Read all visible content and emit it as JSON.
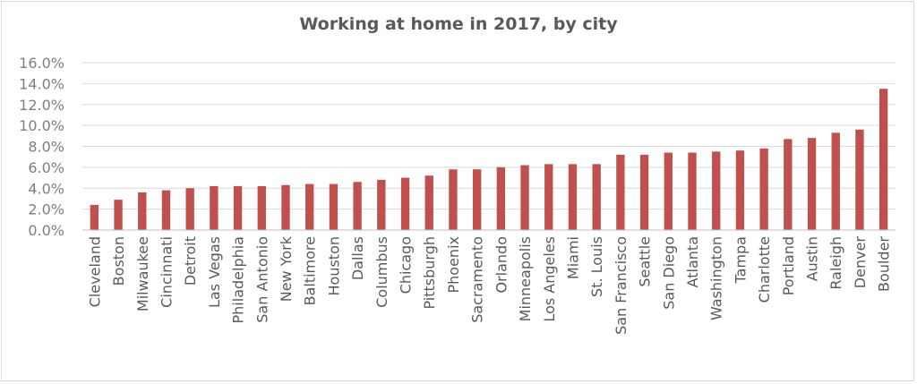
{
  "chart_data": {
    "type": "bar",
    "title": "Working at home in 2017, by city",
    "xlabel": "",
    "ylabel": "",
    "ylim": [
      0,
      16
    ],
    "y_tick_values": [
      0,
      2,
      4,
      6,
      8,
      10,
      12,
      14,
      16
    ],
    "y_tick_labels": [
      "0.0%",
      "2.0%",
      "4.0%",
      "6.0%",
      "8.0%",
      "10.0%",
      "12.0%",
      "14.0%",
      "16.0%"
    ],
    "grid": true,
    "legend": "none",
    "bar_color": "#c0504d",
    "categories": [
      "Cleveland",
      "Boston",
      "Milwaukee",
      "Cincinnati",
      "Detroit",
      "Las Vegas",
      "Philadelphia",
      "San Antonio",
      "New York",
      "Baltimore",
      "Houston",
      "Dallas",
      "Columbus",
      "Chicago",
      "Pittsburgh",
      "Phoenix",
      "Sacramento",
      "Orlando",
      "Minneapolis",
      "Los Angeles",
      "Miami",
      "St. Louis",
      "San Francisco",
      "Seattle",
      "San Diego",
      "Atlanta",
      "Washington",
      "Tampa",
      "Charlotte",
      "Portland",
      "Austin",
      "Raleigh",
      "Denver",
      "Boulder"
    ],
    "values": [
      2.4,
      2.9,
      3.6,
      3.8,
      4.0,
      4.2,
      4.2,
      4.2,
      4.3,
      4.4,
      4.4,
      4.6,
      4.8,
      5.0,
      5.2,
      5.8,
      5.8,
      6.0,
      6.2,
      6.3,
      6.3,
      6.3,
      7.2,
      7.2,
      7.4,
      7.4,
      7.5,
      7.6,
      7.8,
      8.7,
      8.8,
      9.3,
      9.6,
      13.5
    ]
  }
}
